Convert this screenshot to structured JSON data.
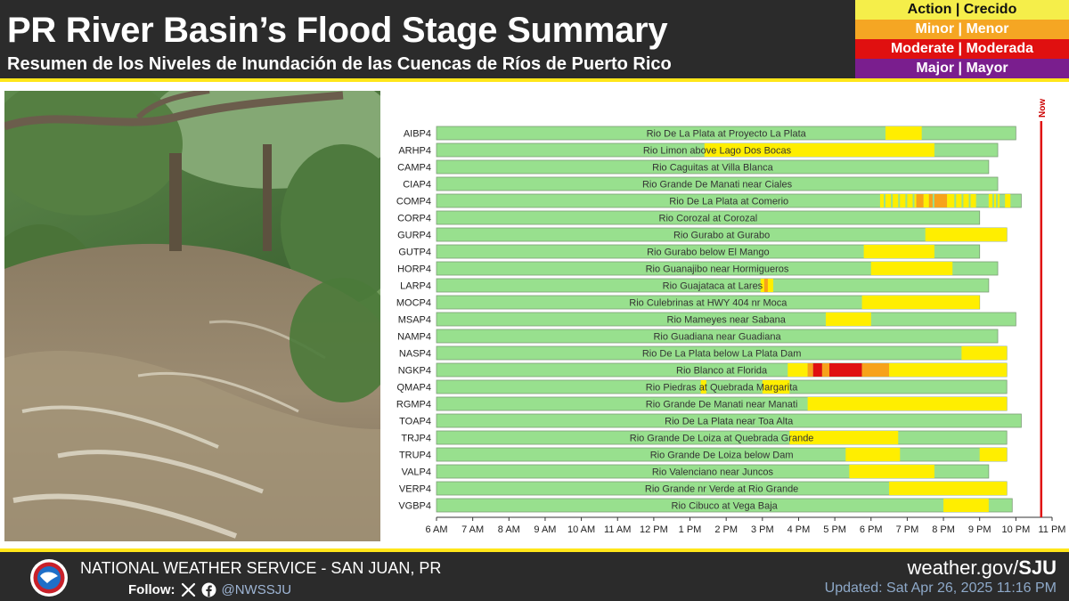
{
  "header": {
    "title": "PR River Basin’s Flood Stage Summary",
    "subtitle": "Resumen de los Niveles de Inundación de las Cuencas de Ríos de Puerto Rico"
  },
  "legend": [
    {
      "label": "Action | Crecido",
      "bg": "#f5ee4a",
      "fg": "#111111"
    },
    {
      "label": "Minor | Menor",
      "bg": "#f5a623",
      "fg": "#ffffff"
    },
    {
      "label": "Moderate | Moderada",
      "bg": "#e01010",
      "fg": "#ffffff"
    },
    {
      "label": "Major | Mayor",
      "bg": "#7a1e8e",
      "fg": "#ffffff"
    }
  ],
  "colors": {
    "normal": "#98e08e",
    "action": "#ffee00",
    "minor": "#f7a21b",
    "moderate": "#e01010",
    "now_line": "#e01010",
    "accent_rule": "#ffe61a"
  },
  "photo": {
    "subject": "flooded river flowing through forest"
  },
  "chart_data": {
    "type": "gantt",
    "now_label": "Now",
    "now_x": 22.7,
    "x_ticks": [
      {
        "value": 6,
        "label": "6 AM"
      },
      {
        "value": 7,
        "label": "7 AM"
      },
      {
        "value": 8,
        "label": "8 AM"
      },
      {
        "value": 9,
        "label": "9 AM"
      },
      {
        "value": 10,
        "label": "10 AM"
      },
      {
        "value": 11,
        "label": "11 AM"
      },
      {
        "value": 12,
        "label": "12 PM"
      },
      {
        "value": 13,
        "label": "1 PM"
      },
      {
        "value": 14,
        "label": "2 PM"
      },
      {
        "value": 15,
        "label": "3 PM"
      },
      {
        "value": 16,
        "label": "4 PM"
      },
      {
        "value": 17,
        "label": "5 PM"
      },
      {
        "value": 18,
        "label": "6 PM"
      },
      {
        "value": 19,
        "label": "7 PM"
      },
      {
        "value": 20,
        "label": "8 PM"
      },
      {
        "value": 21,
        "label": "9 PM"
      },
      {
        "value": 22,
        "label": "10 PM"
      },
      {
        "value": 23,
        "label": "11 PM"
      }
    ],
    "xlim": [
      6,
      23
    ],
    "stations": [
      {
        "id": "AIBP4",
        "name": "Rio De La Plata at Proyecto La Plata",
        "end": 22.0,
        "segments": [
          {
            "start": 18.4,
            "end": 19.4,
            "level": "action"
          }
        ]
      },
      {
        "id": "ARHP4",
        "name": "Rio Limon above Lago Dos Bocas",
        "end": 21.5,
        "segments": [
          {
            "start": 13.4,
            "end": 19.75,
            "level": "action"
          }
        ]
      },
      {
        "id": "CAMP4",
        "name": "Rio Caguitas at Villa Blanca",
        "end": 21.25,
        "segments": []
      },
      {
        "id": "CIAP4",
        "name": "Rio Grande De Manati near Ciales",
        "end": 21.5,
        "segments": []
      },
      {
        "id": "COMP4",
        "name": "Rio De La Plata at Comerio",
        "end": 22.15,
        "segments": [
          {
            "start": 18.25,
            "end": 19.25,
            "level": "action"
          },
          {
            "start": 19.25,
            "end": 19.45,
            "level": "minor"
          },
          {
            "start": 19.45,
            "end": 19.6,
            "level": "action"
          },
          {
            "start": 19.6,
            "end": 20.1,
            "level": "minor"
          },
          {
            "start": 20.1,
            "end": 20.9,
            "level": "action"
          },
          {
            "start": 21.25,
            "end": 21.55,
            "level": "action"
          },
          {
            "start": 21.7,
            "end": 21.85,
            "level": "action"
          }
        ],
        "stripes": [
          18.35,
          18.55,
          18.75,
          18.95,
          19.15,
          19.7,
          20.3,
          20.5,
          20.7,
          21.35,
          21.45
        ]
      },
      {
        "id": "CORP4",
        "name": "Rio Corozal at Corozal",
        "end": 21.0,
        "segments": []
      },
      {
        "id": "GURP4",
        "name": "Rio Gurabo at Gurabo",
        "end": 21.75,
        "segments": [
          {
            "start": 19.5,
            "end": 21.75,
            "level": "action"
          }
        ]
      },
      {
        "id": "GUTP4",
        "name": "Rio Gurabo below El Mango",
        "end": 21.0,
        "segments": [
          {
            "start": 17.8,
            "end": 19.75,
            "level": "action"
          }
        ]
      },
      {
        "id": "HORP4",
        "name": "Rio Guanajibo near Hormigueros",
        "end": 21.5,
        "segments": [
          {
            "start": 18.0,
            "end": 20.25,
            "level": "action"
          }
        ]
      },
      {
        "id": "LARP4",
        "name": "Rio Guajataca at Lares",
        "end": 21.25,
        "segments": [
          {
            "start": 14.95,
            "end": 15.3,
            "level": "action"
          },
          {
            "start": 15.05,
            "end": 15.15,
            "level": "minor"
          }
        ]
      },
      {
        "id": "MOCP4",
        "name": "Rio Culebrinas at HWY 404 nr Moca",
        "end": 21.0,
        "segments": [
          {
            "start": 17.75,
            "end": 21.0,
            "level": "action"
          }
        ]
      },
      {
        "id": "MSAP4",
        "name": "Rio Mameyes near Sabana",
        "end": 22.0,
        "segments": [
          {
            "start": 16.75,
            "end": 18.0,
            "level": "action"
          }
        ]
      },
      {
        "id": "NAMP4",
        "name": "Rio Guadiana near Guadiana",
        "end": 21.5,
        "segments": []
      },
      {
        "id": "NASP4",
        "name": "Rio De La Plata below La Plata Dam",
        "end": 21.75,
        "segments": [
          {
            "start": 20.5,
            "end": 21.75,
            "level": "action"
          }
        ]
      },
      {
        "id": "NGKP4",
        "name": "Rio Blanco at Florida",
        "end": 21.75,
        "segments": [
          {
            "start": 15.7,
            "end": 16.25,
            "level": "action"
          },
          {
            "start": 16.25,
            "end": 16.4,
            "level": "minor"
          },
          {
            "start": 16.4,
            "end": 16.65,
            "level": "moderate"
          },
          {
            "start": 16.65,
            "end": 16.85,
            "level": "minor"
          },
          {
            "start": 16.85,
            "end": 17.75,
            "level": "moderate"
          },
          {
            "start": 17.75,
            "end": 18.5,
            "level": "minor"
          },
          {
            "start": 18.5,
            "end": 21.75,
            "level": "action"
          }
        ]
      },
      {
        "id": "QMAP4",
        "name": "Rio Piedras at Quebrada Margarita",
        "end": 21.75,
        "segments": [
          {
            "start": 13.3,
            "end": 13.45,
            "level": "action"
          },
          {
            "start": 15.0,
            "end": 15.75,
            "level": "action"
          }
        ]
      },
      {
        "id": "RGMP4",
        "name": "Rio Grande De Manati near Manati",
        "end": 21.75,
        "segments": [
          {
            "start": 16.25,
            "end": 21.75,
            "level": "action"
          }
        ]
      },
      {
        "id": "TOAP4",
        "name": "Rio De La Plata near Toa Alta",
        "end": 22.15,
        "segments": []
      },
      {
        "id": "TRJP4",
        "name": "Rio Grande De Loiza at Quebrada Grande",
        "end": 21.75,
        "segments": [
          {
            "start": 15.75,
            "end": 18.75,
            "level": "action"
          }
        ]
      },
      {
        "id": "TRUP4",
        "name": "Rio Grande De Loiza below Dam",
        "end": 21.75,
        "segments": [
          {
            "start": 17.3,
            "end": 18.8,
            "level": "action"
          },
          {
            "start": 21.0,
            "end": 21.75,
            "level": "action"
          }
        ]
      },
      {
        "id": "VALP4",
        "name": "Rio Valenciano near Juncos",
        "end": 21.25,
        "segments": [
          {
            "start": 17.4,
            "end": 19.75,
            "level": "action"
          }
        ]
      },
      {
        "id": "VERP4",
        "name": "Rio Grande nr Verde at Rio Grande",
        "end": 21.75,
        "segments": [
          {
            "start": 18.5,
            "end": 21.75,
            "level": "action"
          }
        ]
      },
      {
        "id": "VGBP4",
        "name": "Rio Cibuco at Vega Baja",
        "end": 21.9,
        "segments": [
          {
            "start": 20.0,
            "end": 21.25,
            "level": "action"
          }
        ]
      }
    ]
  },
  "footer": {
    "agency": "NATIONAL WEATHER SERVICE - SAN JUAN, PR",
    "follow_label": "Follow:",
    "handle": "@NWSSJU",
    "website_prefix": "weather.gov/",
    "website_suffix": "SJU",
    "updated": "Updated: Sat Apr 26, 2025 11:16 PM"
  }
}
